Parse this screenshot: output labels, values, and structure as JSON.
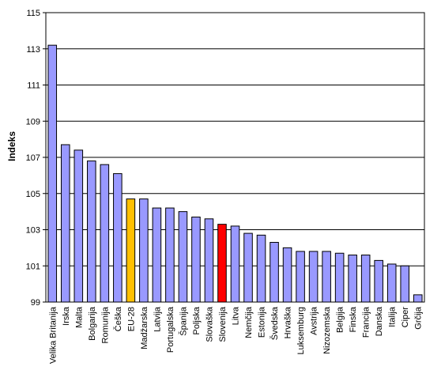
{
  "chart_data": {
    "type": "bar",
    "ylabel": "Indeks",
    "ylim": [
      99,
      115
    ],
    "yticks": [
      99,
      101,
      103,
      105,
      107,
      109,
      111,
      113,
      115
    ],
    "grid": true,
    "categories": [
      "Velika Britanija",
      "Irska",
      "Malta",
      "Bolgarija",
      "Romunija",
      "Češka",
      "EU-28",
      "Madžarska",
      "Latvija",
      "Portugalska",
      "Španija",
      "Poljska",
      "Slovaška",
      "Slovenija",
      "Litva",
      "Nemčija",
      "Estonija",
      "Švedska",
      "Hrvaška",
      "Luksemburg",
      "Avstrija",
      "Nizozemska",
      "Belgija",
      "Finska",
      "Francija",
      "Danska",
      "Italija",
      "Ciper",
      "Grčija"
    ],
    "values": [
      113.2,
      107.7,
      107.4,
      106.8,
      106.6,
      106.1,
      104.7,
      104.7,
      104.2,
      104.2,
      104.0,
      103.7,
      103.6,
      103.3,
      103.2,
      102.8,
      102.7,
      102.3,
      102.0,
      101.8,
      101.8,
      101.8,
      101.7,
      101.6,
      101.6,
      101.3,
      101.1,
      101.0,
      99.4
    ],
    "colors": {
      "default": "#9999ff",
      "highlight_eu": "#ffc000",
      "highlight_si": "#ff0000",
      "border": "#000000",
      "grid": "#000000"
    },
    "highlights": {
      "EU-28": "highlight_eu",
      "Slovenija": "highlight_si"
    }
  }
}
